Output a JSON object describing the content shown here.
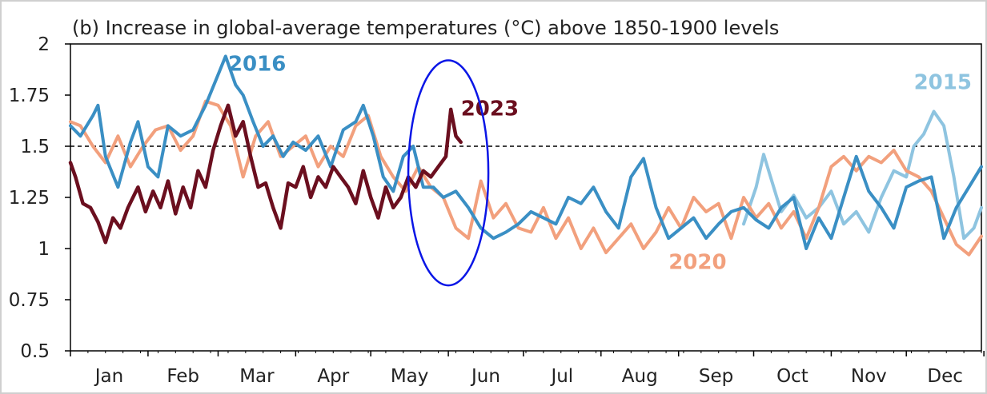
{
  "chart_data": {
    "type": "line",
    "title": "(b) Increase in global-average temperatures (°C) above 1850-1900 levels",
    "xlabel": "",
    "ylabel": "",
    "ylim": [
      0.5,
      2.0
    ],
    "y_ticks": [
      0.5,
      0.75,
      1,
      1.25,
      1.5,
      1.75,
      2
    ],
    "y_tick_labels": [
      "0.5",
      "0.75",
      "1",
      "1.25",
      "1.5",
      "1.75",
      "2"
    ],
    "months": [
      "Jan",
      "Feb",
      "Mar",
      "Apr",
      "May",
      "Jun",
      "Jul",
      "Aug",
      "Sep",
      "Oct",
      "Nov",
      "Dec"
    ],
    "x_unit": "day of year",
    "reference_line": {
      "y": 1.5,
      "style": "dashed"
    },
    "highlight_ellipse": {
      "center": [
        152,
        1.37
      ],
      "radius_days": 16,
      "radius_value": 0.55,
      "color": "#0a16e6"
    },
    "grid": false,
    "series": [
      {
        "name": "2015",
        "color": "#8ec4e0",
        "x": [
          270,
          275,
          278,
          282,
          285,
          290,
          295,
          300,
          305,
          310,
          315,
          320,
          325,
          330,
          335,
          338,
          342,
          346,
          350,
          354,
          358,
          362,
          365
        ],
        "y": [
          1.12,
          1.3,
          1.46,
          1.3,
          1.18,
          1.26,
          1.15,
          1.2,
          1.28,
          1.12,
          1.18,
          1.08,
          1.25,
          1.38,
          1.35,
          1.5,
          1.56,
          1.67,
          1.6,
          1.35,
          1.05,
          1.1,
          1.2
        ],
        "label_pos": [
          338,
          1.78
        ]
      },
      {
        "name": "2020",
        "color": "#f2a07d",
        "x": [
          1,
          5,
          10,
          15,
          20,
          25,
          30,
          35,
          40,
          45,
          50,
          55,
          60,
          65,
          70,
          75,
          80,
          85,
          90,
          95,
          100,
          105,
          110,
          115,
          120,
          125,
          130,
          135,
          140,
          145,
          150,
          155,
          160,
          165,
          170,
          175,
          180,
          185,
          190,
          195,
          200,
          205,
          210,
          215,
          220,
          225,
          230,
          235,
          240,
          245,
          250,
          255,
          260,
          265,
          270,
          275,
          280,
          285,
          290,
          295,
          300,
          305,
          310,
          315,
          320,
          325,
          330,
          335,
          340,
          345,
          350,
          355,
          360,
          365
        ],
        "y": [
          1.62,
          1.6,
          1.5,
          1.42,
          1.55,
          1.4,
          1.5,
          1.58,
          1.6,
          1.48,
          1.55,
          1.72,
          1.7,
          1.6,
          1.35,
          1.55,
          1.62,
          1.45,
          1.5,
          1.55,
          1.4,
          1.5,
          1.45,
          1.6,
          1.65,
          1.45,
          1.35,
          1.28,
          1.4,
          1.3,
          1.25,
          1.1,
          1.05,
          1.33,
          1.15,
          1.22,
          1.1,
          1.08,
          1.2,
          1.05,
          1.15,
          1.0,
          1.1,
          0.98,
          1.05,
          1.12,
          1.0,
          1.08,
          1.2,
          1.1,
          1.25,
          1.18,
          1.22,
          1.05,
          1.25,
          1.15,
          1.22,
          1.1,
          1.18,
          1.05,
          1.2,
          1.4,
          1.45,
          1.38,
          1.45,
          1.42,
          1.48,
          1.38,
          1.35,
          1.28,
          1.15,
          1.02,
          0.97,
          1.06
        ],
        "label_pos": [
          240,
          0.9
        ]
      },
      {
        "name": "2016",
        "color": "#3a8fc4",
        "x": [
          1,
          5,
          10,
          12,
          15,
          20,
          25,
          28,
          32,
          36,
          40,
          45,
          50,
          55,
          60,
          63,
          67,
          70,
          74,
          78,
          82,
          86,
          90,
          95,
          100,
          105,
          110,
          115,
          118,
          122,
          126,
          130,
          134,
          138,
          142,
          146,
          150,
          155,
          160,
          165,
          170,
          175,
          180,
          185,
          190,
          195,
          200,
          205,
          210,
          215,
          220,
          225,
          230,
          235,
          240,
          245,
          250,
          255,
          260,
          265,
          270,
          275,
          280,
          285,
          290,
          295,
          300,
          305,
          310,
          315,
          320,
          325,
          330,
          335,
          340,
          345,
          350,
          355,
          360,
          365
        ],
        "y": [
          1.6,
          1.55,
          1.65,
          1.7,
          1.45,
          1.3,
          1.52,
          1.62,
          1.4,
          1.35,
          1.6,
          1.55,
          1.58,
          1.7,
          1.85,
          1.94,
          1.8,
          1.75,
          1.62,
          1.5,
          1.55,
          1.45,
          1.52,
          1.48,
          1.55,
          1.4,
          1.58,
          1.62,
          1.7,
          1.55,
          1.35,
          1.28,
          1.45,
          1.5,
          1.3,
          1.3,
          1.25,
          1.28,
          1.2,
          1.1,
          1.05,
          1.08,
          1.12,
          1.18,
          1.15,
          1.12,
          1.25,
          1.22,
          1.3,
          1.18,
          1.1,
          1.35,
          1.44,
          1.2,
          1.05,
          1.1,
          1.15,
          1.05,
          1.12,
          1.18,
          1.2,
          1.14,
          1.1,
          1.2,
          1.25,
          1.0,
          1.15,
          1.05,
          1.25,
          1.45,
          1.28,
          1.2,
          1.1,
          1.3,
          1.33,
          1.35,
          1.05,
          1.2,
          1.3,
          1.4
        ],
        "label_pos": [
          64,
          1.87
        ]
      },
      {
        "name": "2023",
        "color": "#6b0f1f",
        "x": [
          1,
          3,
          6,
          9,
          12,
          15,
          18,
          21,
          24,
          28,
          31,
          34,
          37,
          40,
          43,
          46,
          49,
          52,
          55,
          58,
          61,
          64,
          67,
          70,
          73,
          76,
          79,
          82,
          85,
          88,
          91,
          94,
          97,
          100,
          103,
          106,
          109,
          112,
          115,
          118,
          121,
          124,
          127,
          130,
          133,
          136,
          139,
          142,
          145,
          148,
          151,
          153,
          155,
          157
        ],
        "y": [
          1.42,
          1.35,
          1.22,
          1.2,
          1.13,
          1.03,
          1.15,
          1.1,
          1.2,
          1.3,
          1.18,
          1.28,
          1.2,
          1.33,
          1.17,
          1.3,
          1.2,
          1.38,
          1.3,
          1.48,
          1.6,
          1.7,
          1.55,
          1.62,
          1.45,
          1.3,
          1.32,
          1.2,
          1.1,
          1.32,
          1.3,
          1.4,
          1.25,
          1.35,
          1.3,
          1.4,
          1.35,
          1.3,
          1.22,
          1.38,
          1.25,
          1.15,
          1.3,
          1.2,
          1.25,
          1.35,
          1.3,
          1.38,
          1.35,
          1.4,
          1.45,
          1.68,
          1.55,
          1.52
        ],
        "label_pos": [
          157,
          1.65
        ]
      }
    ]
  }
}
